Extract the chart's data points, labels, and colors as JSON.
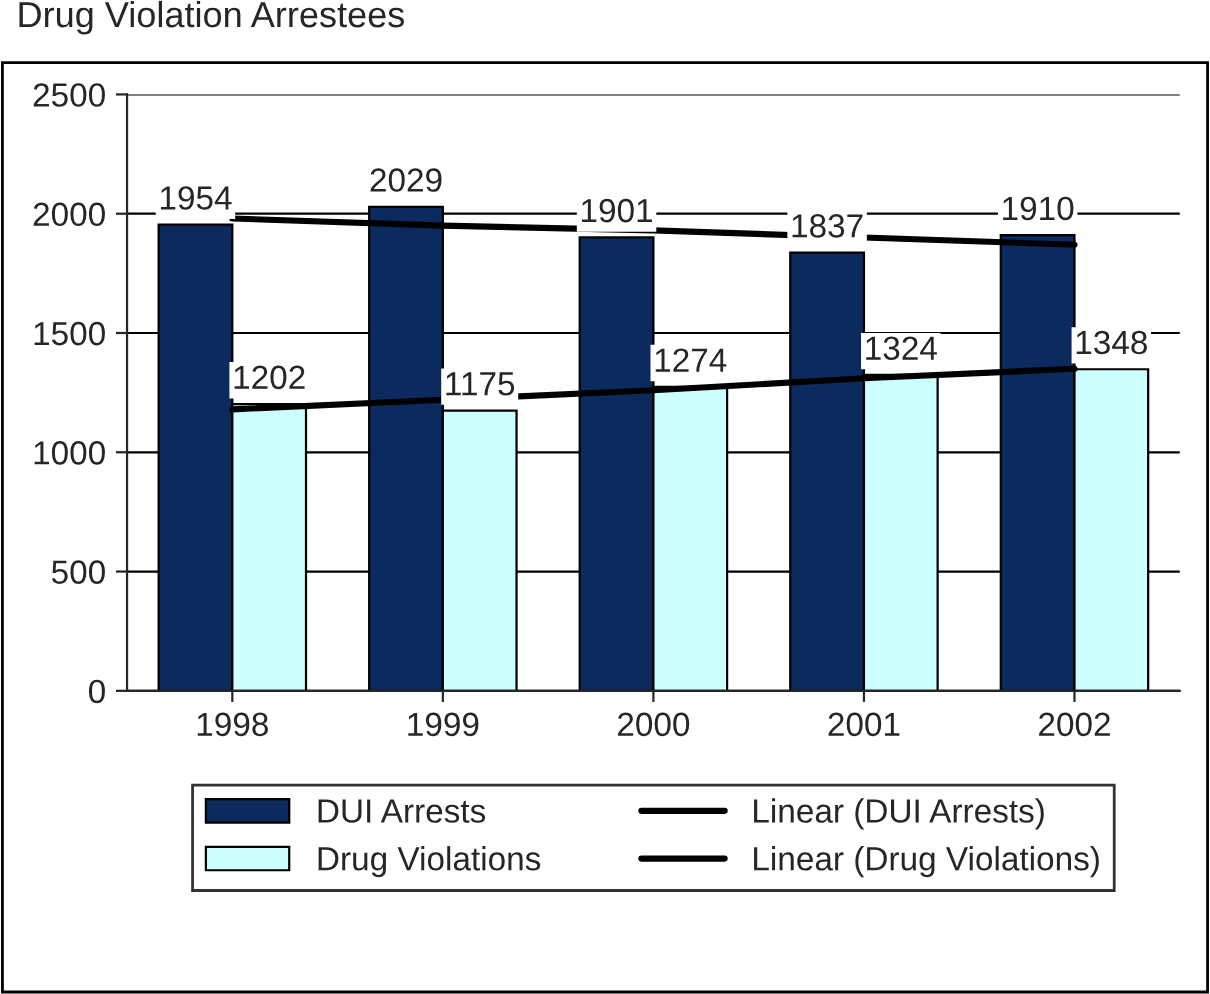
{
  "chart_data": {
    "type": "bar",
    "title": "Drug Violation Arrestees",
    "categories": [
      "1998",
      "1999",
      "2000",
      "2001",
      "2002"
    ],
    "series": [
      {
        "name": "DUI Arrests",
        "color": "#0b2b5e",
        "values": [
          1954,
          2029,
          1901,
          1837,
          1910
        ]
      },
      {
        "name": "Drug Violations",
        "color": "#ccffff",
        "values": [
          1202,
          1175,
          1274,
          1324,
          1348
        ]
      },
      {
        "name": "Linear (DUI Arrests)",
        "type": "line",
        "color": "#000000",
        "values": [
          1980,
          1950,
          1930,
          1900,
          1870
        ]
      },
      {
        "name": "Linear (Drug Violations)",
        "type": "line",
        "color": "#000000",
        "values": [
          1180,
          1220,
          1260,
          1310,
          1350
        ]
      }
    ],
    "value_labels": [
      [
        "1954",
        "2029",
        "1901",
        "1837",
        "1910"
      ],
      [
        "1202",
        "1175",
        "1274",
        "1324",
        "1348"
      ],
      null,
      null
    ],
    "ylim": [
      0,
      2500
    ],
    "yticks": [
      0,
      500,
      1000,
      1500,
      2000,
      2500
    ],
    "grid": "y",
    "legend": "bottom"
  }
}
